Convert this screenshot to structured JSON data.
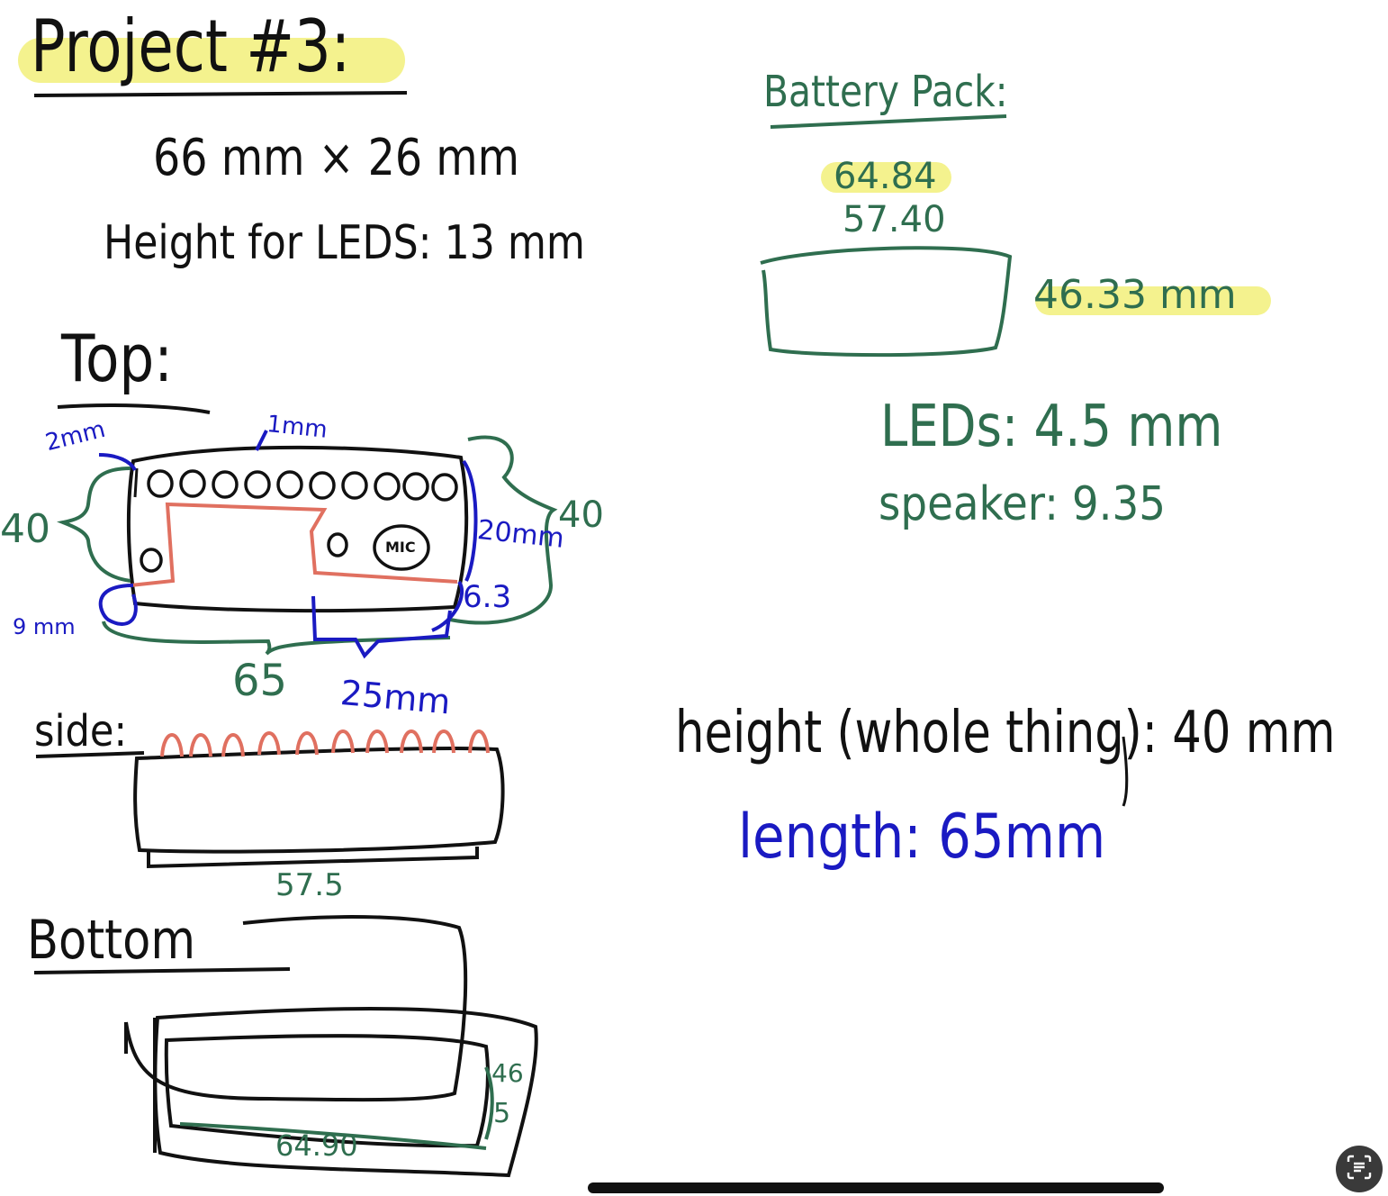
{
  "note": {
    "title": "Project #3:",
    "dimensions": "66 mm × 26 mm",
    "led_height": "Height for LEDS: 13 mm",
    "battery": {
      "heading": "Battery Pack:",
      "value_1": "64.84",
      "value_2": "57.40",
      "side_value": "46.33 mm"
    },
    "leds": "LEDs: 4.5 mm",
    "speaker": "speaker: 9.35",
    "top": {
      "heading": "Top:",
      "top_left_gap": "2mm",
      "top_gap": "1mm",
      "left_size": "40",
      "right_size": "40",
      "right_inner": "20mm",
      "bottom_right": "6.3",
      "bottom_left": "9 mm",
      "bottom_length": "65",
      "bottom_span": "25mm",
      "mic_label": "MIC",
      "hole_label": "O"
    },
    "side": {
      "heading": "side:",
      "base_length": "57.5"
    },
    "bottom": {
      "heading": "Bottom",
      "side_value_top": "46",
      "side_value_bottom": "5",
      "length": "64.90"
    },
    "height_whole": "height (whole thing): 40 mm",
    "length": "length: 65mm"
  },
  "ui": {
    "scan_icon": "text-scan-icon"
  },
  "colors": {
    "ink_black": "#111111",
    "ink_green": "#2f6e4f",
    "ink_blue": "#1a1ac2",
    "ink_red": "#e07060",
    "highlight": "#f2f07a"
  }
}
